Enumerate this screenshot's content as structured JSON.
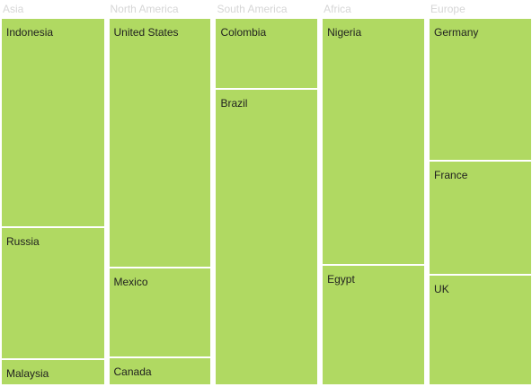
{
  "chart_data": {
    "type": "treemap",
    "title": "",
    "colors": {
      "tile": "#b0d962",
      "group_label": "#d6d6d6",
      "tile_label": "#1f1f1f",
      "border": "#ffffff"
    },
    "groups": [
      {
        "name": "Asia",
        "items": [
          {
            "name": "Indonesia",
            "value": 232
          },
          {
            "name": "Russia",
            "value": 146
          },
          {
            "name": "Malaysia",
            "value": 29
          }
        ]
      },
      {
        "name": "North America",
        "items": [
          {
            "name": "United States",
            "value": 275
          },
          {
            "name": "Mexico",
            "value": 99
          },
          {
            "name": "Canada",
            "value": 31
          }
        ]
      },
      {
        "name": "South America",
        "items": [
          {
            "name": "Colombia",
            "value": 78
          },
          {
            "name": "Brazil",
            "value": 326
          }
        ]
      },
      {
        "name": "Africa",
        "items": [
          {
            "name": "Nigeria",
            "value": 272
          },
          {
            "name": "Egypt",
            "value": 133
          }
        ]
      },
      {
        "name": "Europe",
        "items": [
          {
            "name": "Germany",
            "value": 157
          },
          {
            "name": "France",
            "value": 126
          },
          {
            "name": "UK",
            "value": 122
          }
        ]
      }
    ]
  }
}
